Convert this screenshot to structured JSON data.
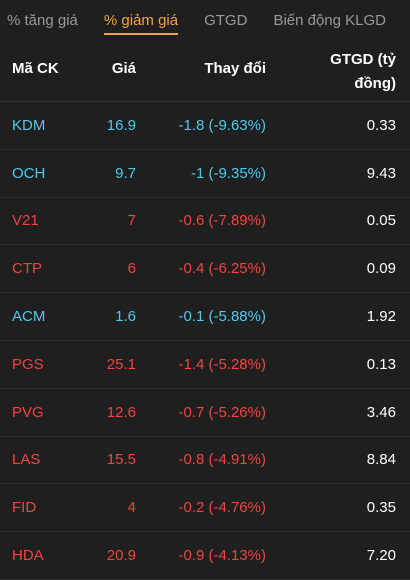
{
  "tabs": [
    {
      "label": "% tăng giá",
      "active": false
    },
    {
      "label": "% giảm giá",
      "active": true
    },
    {
      "label": "GTGD",
      "active": false
    },
    {
      "label": "Biến động KLGD",
      "active": false
    }
  ],
  "table": {
    "headers": {
      "symbol": "Mã CK",
      "price": "Giá",
      "change": "Thay đổi",
      "value_line1": "GTGD (tỷ",
      "value_line2": "đồng)"
    },
    "colors": {
      "floor": "#4fc9ec",
      "down": "#f0443f",
      "active_tab": "#f3a33c"
    },
    "rows": [
      {
        "symbol": "KDM",
        "price": "16.9",
        "change": "-1.8 (-9.63%)",
        "value": "0.33",
        "status": "floor"
      },
      {
        "symbol": "OCH",
        "price": "9.7",
        "change": "-1 (-9.35%)",
        "value": "9.43",
        "status": "floor"
      },
      {
        "symbol": "V21",
        "price": "7",
        "change": "-0.6 (-7.89%)",
        "value": "0.05",
        "status": "down"
      },
      {
        "symbol": "CTP",
        "price": "6",
        "change": "-0.4 (-6.25%)",
        "value": "0.09",
        "status": "down"
      },
      {
        "symbol": "ACM",
        "price": "1.6",
        "change": "-0.1 (-5.88%)",
        "value": "1.92",
        "status": "floor"
      },
      {
        "symbol": "PGS",
        "price": "25.1",
        "change": "-1.4 (-5.28%)",
        "value": "0.13",
        "status": "down"
      },
      {
        "symbol": "PVG",
        "price": "12.6",
        "change": "-0.7 (-5.26%)",
        "value": "3.46",
        "status": "down"
      },
      {
        "symbol": "LAS",
        "price": "15.5",
        "change": "-0.8 (-4.91%)",
        "value": "8.84",
        "status": "down"
      },
      {
        "symbol": "FID",
        "price": "4",
        "change": "-0.2 (-4.76%)",
        "value": "0.35",
        "status": "down"
      },
      {
        "symbol": "HDA",
        "price": "20.9",
        "change": "-0.9 (-4.13%)",
        "value": "7.20",
        "status": "down"
      }
    ]
  }
}
